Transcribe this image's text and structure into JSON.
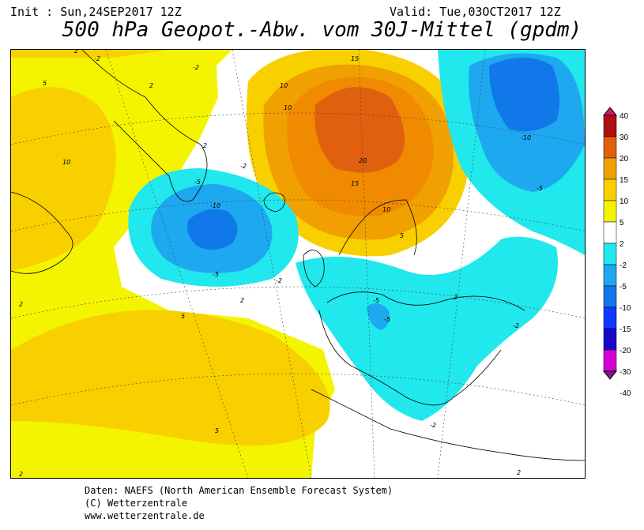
{
  "header": {
    "init": "Init : Sun,24SEP2017 12Z",
    "valid": "Valid: Tue,03OCT2017 12Z",
    "title": "500 hPa Geopot.-Abw. vom 30J-Mittel (gpdm)"
  },
  "legend": {
    "levels": [
      "40",
      "30",
      "20",
      "15",
      "10",
      "5",
      "2",
      "-2",
      "-5",
      "-10",
      "-15",
      "-20",
      "-30",
      "-40"
    ],
    "colors": [
      "#d4146a",
      "#b01010",
      "#e06010",
      "#f0a000",
      "#f8d000",
      "#f4f400",
      "#ffffff",
      "#20e8ec",
      "#1ea8f0",
      "#1078e8",
      "#1038ff",
      "#1808c8",
      "#d400d4",
      "#7a1a8a"
    ]
  },
  "map": {
    "contour_labels": [
      {
        "text": "5"
      },
      {
        "text": "-2"
      },
      {
        "text": "-2"
      },
      {
        "text": "10"
      },
      {
        "text": "10"
      },
      {
        "text": "15"
      },
      {
        "text": "20"
      },
      {
        "text": "15"
      },
      {
        "text": "10"
      },
      {
        "text": "5"
      },
      {
        "text": "-2"
      },
      {
        "text": "-5"
      },
      {
        "text": "-10"
      },
      {
        "text": "-5"
      },
      {
        "text": "-2"
      },
      {
        "text": "2"
      },
      {
        "text": "5"
      },
      {
        "text": "2"
      },
      {
        "text": "5"
      },
      {
        "text": "-5"
      },
      {
        "text": "-5"
      },
      {
        "text": "2"
      },
      {
        "text": "-2"
      },
      {
        "text": "-10"
      },
      {
        "text": "-5"
      },
      {
        "text": "-2"
      },
      {
        "text": "2"
      },
      {
        "text": "-2"
      },
      {
        "text": "2"
      },
      {
        "text": "2"
      },
      {
        "text": "10"
      },
      {
        "text": "2"
      }
    ]
  },
  "credits": {
    "line1": "Daten: NAEFS (North American Ensemble Forecast System)",
    "line2": "(C) Wetterzentrale",
    "line3": "www.wetterzentrale.de"
  }
}
